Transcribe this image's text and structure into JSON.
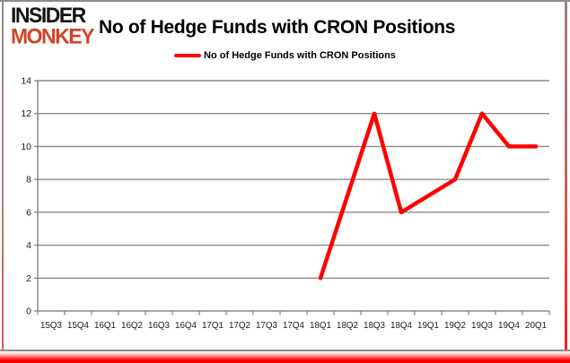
{
  "header": {
    "logo_line1": "INSIDER",
    "logo_line2": "MONKEY",
    "title": "No of Hedge Funds with CRON Positions"
  },
  "legend": {
    "label": "No of Hedge Funds with CRON Positions"
  },
  "colors": {
    "line": "#ff0000",
    "grid": "#8c8c8c",
    "axis": "#7f7f7f",
    "tick_text": "#1a1a1a",
    "logo_black": "#161412",
    "logo_accent": "#cf4527",
    "frame_gray": "#8c8c8c",
    "frame_red": "#ff0000"
  },
  "chart_data": {
    "type": "line",
    "title": "No of Hedge Funds with CRON Positions",
    "categories": [
      "15Q3",
      "15Q4",
      "16Q1",
      "16Q2",
      "16Q3",
      "16Q4",
      "17Q1",
      "17Q2",
      "17Q3",
      "17Q4",
      "18Q1",
      "18Q2",
      "18Q3",
      "18Q4",
      "19Q1",
      "19Q2",
      "19Q3",
      "19Q4",
      "20Q1"
    ],
    "series": [
      {
        "name": "No of Hedge Funds with CRON Positions",
        "color": "#ff0000",
        "values": [
          null,
          null,
          null,
          null,
          null,
          null,
          null,
          null,
          null,
          null,
          2,
          7,
          12,
          6,
          7,
          8,
          12,
          10,
          10
        ]
      }
    ],
    "ylim": [
      0,
      14
    ],
    "ytick_step": 2,
    "grid": true,
    "legend_position": "top-center",
    "xlabel": "",
    "ylabel": ""
  }
}
